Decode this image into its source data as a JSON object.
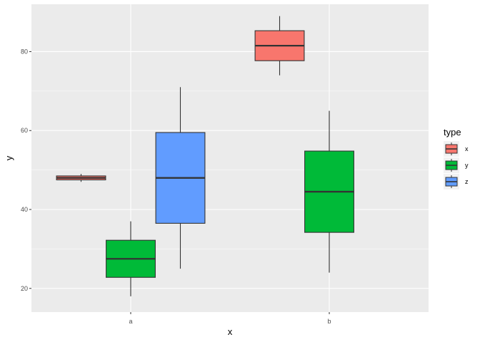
{
  "chart_data": {
    "type": "boxplot",
    "xlabel": "x",
    "ylabel": "y",
    "categories": [
      "a",
      "b"
    ],
    "ylim": [
      14,
      92
    ],
    "yticks": [
      20,
      40,
      60,
      80
    ],
    "grid": true,
    "legend": {
      "title": "type",
      "position": "right"
    },
    "series": [
      {
        "name": "x",
        "color": "#F8766D",
        "boxes": [
          {
            "category": "a",
            "min": 47,
            "q1": 47.5,
            "median": 48,
            "q3": 48.5,
            "max": 49
          },
          {
            "category": "b",
            "min": 74,
            "q1": 77.7,
            "median": 81.5,
            "q3": 85.3,
            "max": 89
          }
        ]
      },
      {
        "name": "y",
        "color": "#00BA38",
        "boxes": [
          {
            "category": "a",
            "min": 18,
            "q1": 22.8,
            "median": 27.5,
            "q3": 32.2,
            "max": 37
          },
          {
            "category": "b",
            "min": 24,
            "q1": 34.2,
            "median": 44.5,
            "q3": 54.8,
            "max": 65
          }
        ]
      },
      {
        "name": "z",
        "color": "#619CFF",
        "boxes": [
          {
            "category": "a",
            "min": 25,
            "q1": 36.5,
            "median": 48,
            "q3": 59.5,
            "max": 71
          }
        ]
      }
    ]
  }
}
